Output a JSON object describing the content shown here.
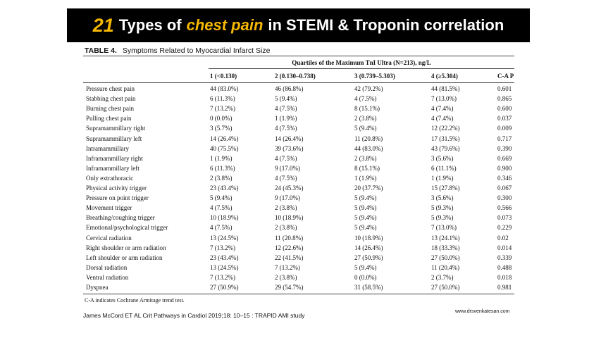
{
  "header": {
    "number": "21",
    "title_a": "Types of",
    "title_b": "chest pain",
    "title_c": "in STEMI & Troponin correlation"
  },
  "table": {
    "caption_label": "TABLE 4.",
    "caption": "Symptoms Related to Myocardial Infarct Size",
    "group_header": "Quartiles of the Maximum TnI Ultra (N=213), ng/L",
    "columns": [
      "1 (<0.130)",
      "2 (0.130–0.738)",
      "3 (0.739–5.303)",
      "4 (≥5.304)",
      "C-A P"
    ],
    "rows": [
      [
        "Pressure chest pain",
        "44 (83.0%)",
        "46 (86.8%)",
        "42 (79.2%)",
        "44 (81.5%)",
        "0.601"
      ],
      [
        "Stabbing chest pain",
        "6 (11.3%)",
        "5 (9.4%)",
        "4 (7.5%)",
        "7 (13.0%)",
        "0.865"
      ],
      [
        "Burning chest pain",
        "7 (13.2%)",
        "4 (7.5%)",
        "8 (15.1%)",
        "4 (7.4%)",
        "0.600"
      ],
      [
        "Pulling chest pain",
        "0 (0.0%)",
        "1 (1.9%)",
        "2 (3.8%)",
        "4 (7.4%)",
        "0.037"
      ],
      [
        "Supramammillary right",
        "3 (5.7%)",
        "4 (7.5%)",
        "5 (9.4%)",
        "12 (22.2%)",
        "0.009"
      ],
      [
        "Supramammillary left",
        "14 (26.4%)",
        "14 (26.4%)",
        "11 (20.8%)",
        "17 (31.5%)",
        "0.717"
      ],
      [
        "Intramammillary",
        "40 (75.5%)",
        "39 (73.6%)",
        "44 (83.0%)",
        "43 (79.6%)",
        "0.390"
      ],
      [
        "Inframammillary right",
        "1 (1.9%)",
        "4 (7.5%)",
        "2 (3.8%)",
        "3 (5.6%)",
        "0.669"
      ],
      [
        "Inframammillary left",
        "6 (11.3%)",
        "9 (17.0%)",
        "8 (15.1%)",
        "6 (11.1%)",
        "0.900"
      ],
      [
        "Only extrathoracic",
        "2 (3.8%)",
        "4 (7.5%)",
        "1 (1.9%)",
        "1 (1.9%)",
        "0.346"
      ],
      [
        "Physical activity trigger",
        "23 (43.4%)",
        "24 (45.3%)",
        "20 (37.7%)",
        "15 (27.8%)",
        "0.067"
      ],
      [
        "Pressure on point trigger",
        "5 (9.4%)",
        "9 (17.0%)",
        "5 (9.4%)",
        "3 (5.6%)",
        "0.300"
      ],
      [
        "Movement trigger",
        "4 (7.5%)",
        "2 (3.8%)",
        "5 (9.4%)",
        "5 (9.3%)",
        "0.566"
      ],
      [
        "Breathing/coughing trigger",
        "10 (18.9%)",
        "10 (18.9%)",
        "5 (9.4%)",
        "5 (9.3%)",
        "0.073"
      ],
      [
        "Emotional/psychological trigger",
        "4 (7.5%)",
        "2 (3.8%)",
        "5 (9.4%)",
        "7 (13.0%)",
        "0.229"
      ],
      [
        "Cervical radiation",
        "13 (24.5%)",
        "11 (20.8%)",
        "10 (18.9%)",
        "13 (24.1%)",
        "0.02"
      ],
      [
        "Right shoulder or arm radiation",
        "7 (13.2%)",
        "12 (22.6%)",
        "14 (26.4%)",
        "18 (33.3%)",
        "0.014"
      ],
      [
        "Left shoulder or arm radiation",
        "23 (43.4%)",
        "22 (41.5%)",
        "27 (50.9%)",
        "27 (50.0%)",
        "0.339"
      ],
      [
        "Dorsal radiation",
        "13 (24.5%)",
        "7 (13.2%)",
        "5 (9.4%)",
        "11 (20.4%)",
        "0.488"
      ],
      [
        "Ventral radiation",
        "7 (13.2%)",
        "2 (3.8%)",
        "0 (0.0%)",
        "2 (3.7%)",
        "0.018"
      ],
      [
        "Dyspnea",
        "27 (50.9%)",
        "29 (54.7%)",
        "31 (58.5%)",
        "27 (50.0%)",
        "0.981"
      ]
    ],
    "footnote": "C-A indicates Cochrane Armitage trend test."
  },
  "citation": "James McCord ET AL Crit Pathways in Cardiol 2019;18: 10–15  : TRAPID AMI study",
  "website": "www.drsvenkatesan.com"
}
